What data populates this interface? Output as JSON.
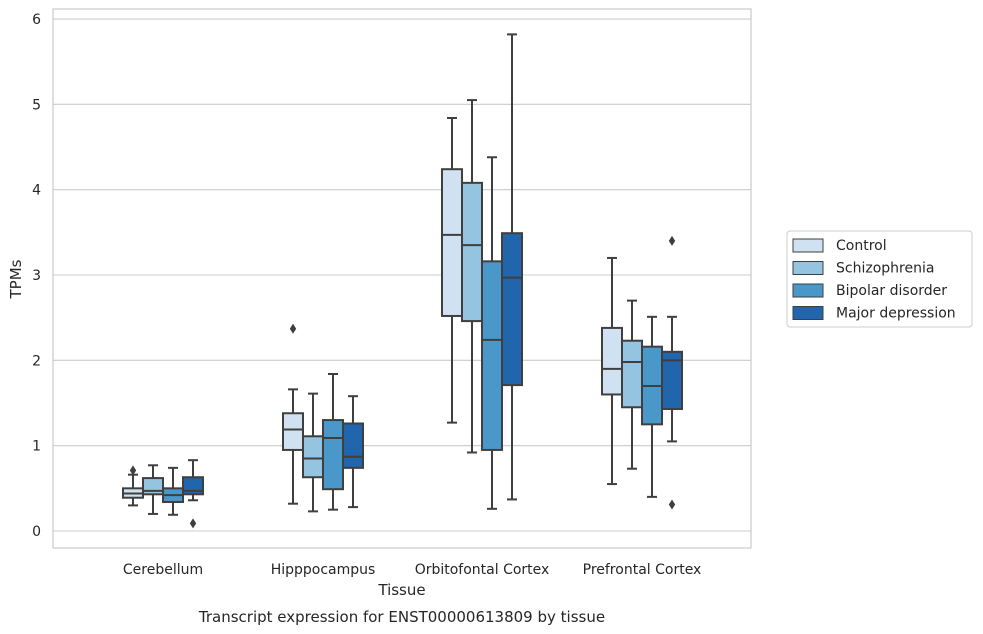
{
  "caption": "Transcript expression for ENST00000613809 by tissue",
  "chart_data": {
    "type": "box",
    "title": "",
    "xlabel": "Tissue",
    "ylabel": "TPMs",
    "ylim": [
      -0.2,
      6.1
    ],
    "yticks": [
      0,
      1,
      2,
      3,
      4,
      5,
      6
    ],
    "grid": true,
    "legend_position": "right-outside",
    "categories": [
      "Cerebellum",
      "Hipppocampus",
      "Orbitofontal Cortex",
      "Prefrontal Cortex"
    ],
    "series": [
      {
        "name": "Control",
        "color": "#d0e1f2",
        "boxes": [
          {
            "whislo": 0.3,
            "q1": 0.39,
            "med": 0.44,
            "q3": 0.5,
            "whishi": 0.66,
            "fliers": [
              0.71
            ]
          },
          {
            "whislo": 0.32,
            "q1": 0.95,
            "med": 1.19,
            "q3": 1.38,
            "whishi": 1.66,
            "fliers": [
              2.37
            ]
          },
          {
            "whislo": 1.27,
            "q1": 2.52,
            "med": 3.47,
            "q3": 4.24,
            "whishi": 4.84,
            "fliers": []
          },
          {
            "whislo": 0.55,
            "q1": 1.6,
            "med": 1.9,
            "q3": 2.38,
            "whishi": 3.2,
            "fliers": []
          }
        ]
      },
      {
        "name": "Schizophrenia",
        "color": "#94c4df",
        "boxes": [
          {
            "whislo": 0.2,
            "q1": 0.43,
            "med": 0.47,
            "q3": 0.62,
            "whishi": 0.77,
            "fliers": []
          },
          {
            "whislo": 0.23,
            "q1": 0.63,
            "med": 0.85,
            "q3": 1.11,
            "whishi": 1.61,
            "fliers": []
          },
          {
            "whislo": 0.92,
            "q1": 2.46,
            "med": 3.35,
            "q3": 4.08,
            "whishi": 5.05,
            "fliers": []
          },
          {
            "whislo": 0.73,
            "q1": 1.45,
            "med": 1.98,
            "q3": 2.23,
            "whishi": 2.7,
            "fliers": []
          }
        ]
      },
      {
        "name": "Bipolar disorder",
        "color": "#4a98c9",
        "boxes": [
          {
            "whislo": 0.19,
            "q1": 0.34,
            "med": 0.42,
            "q3": 0.5,
            "whishi": 0.74,
            "fliers": []
          },
          {
            "whislo": 0.25,
            "q1": 0.49,
            "med": 1.09,
            "q3": 1.3,
            "whishi": 1.84,
            "fliers": []
          },
          {
            "whislo": 0.26,
            "q1": 0.95,
            "med": 2.24,
            "q3": 3.16,
            "whishi": 4.38,
            "fliers": []
          },
          {
            "whislo": 0.4,
            "q1": 1.25,
            "med": 1.7,
            "q3": 2.16,
            "whishi": 2.51,
            "fliers": []
          }
        ]
      },
      {
        "name": "Major depression",
        "color": "#2166ac",
        "boxes": [
          {
            "whislo": 0.36,
            "q1": 0.43,
            "med": 0.47,
            "q3": 0.63,
            "whishi": 0.83,
            "fliers": [
              0.09
            ]
          },
          {
            "whislo": 0.28,
            "q1": 0.74,
            "med": 0.87,
            "q3": 1.26,
            "whishi": 1.58,
            "fliers": []
          },
          {
            "whislo": 0.37,
            "q1": 1.71,
            "med": 2.97,
            "q3": 3.49,
            "whishi": 5.82,
            "fliers": []
          },
          {
            "whislo": 1.05,
            "q1": 1.43,
            "med": 2.0,
            "q3": 2.1,
            "whishi": 2.51,
            "fliers": [
              3.4,
              0.31
            ]
          }
        ]
      }
    ]
  }
}
